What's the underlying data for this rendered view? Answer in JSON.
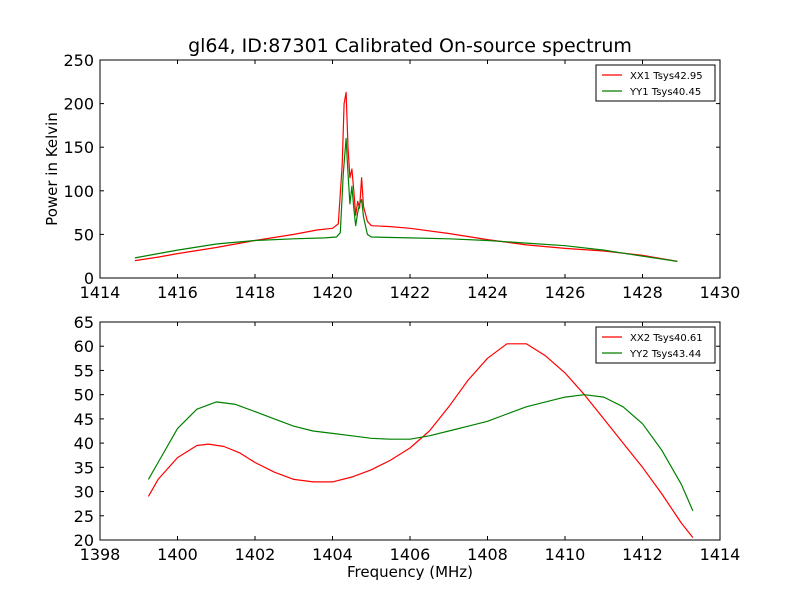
{
  "figure": {
    "title": "gl64, ID:87301 Calibrated On-source spectrum"
  },
  "chart_data": [
    {
      "type": "line",
      "title": "gl64, ID:87301 Calibrated On-source spectrum",
      "xlabel": "",
      "ylabel": "Power in Kelvin",
      "xlim": [
        1414,
        1430
      ],
      "ylim": [
        0,
        250
      ],
      "xticks": [
        1414,
        1416,
        1418,
        1420,
        1422,
        1424,
        1426,
        1428,
        1430
      ],
      "yticks": [
        0,
        50,
        100,
        150,
        200,
        250
      ],
      "legend_position": "top-right",
      "grid": false,
      "series": [
        {
          "name": "XX1 Tsys42.95",
          "color": "#ff0000",
          "points": [
            [
              1414.9,
              20
            ],
            [
              1415.5,
              24
            ],
            [
              1416,
              28
            ],
            [
              1417,
              35
            ],
            [
              1418,
              43
            ],
            [
              1419,
              50
            ],
            [
              1419.6,
              55
            ],
            [
              1420.0,
              57
            ],
            [
              1420.15,
              62
            ],
            [
              1420.25,
              130
            ],
            [
              1420.3,
              200
            ],
            [
              1420.35,
              213
            ],
            [
              1420.4,
              150
            ],
            [
              1420.45,
              115
            ],
            [
              1420.5,
              125
            ],
            [
              1420.55,
              100
            ],
            [
              1420.6,
              72
            ],
            [
              1420.65,
              88
            ],
            [
              1420.7,
              80
            ],
            [
              1420.75,
              115
            ],
            [
              1420.8,
              82
            ],
            [
              1420.9,
              65
            ],
            [
              1421.0,
              60
            ],
            [
              1421.5,
              59
            ],
            [
              1422,
              57
            ],
            [
              1423,
              51
            ],
            [
              1424,
              44
            ],
            [
              1425,
              38
            ],
            [
              1426,
              34
            ],
            [
              1427,
              31
            ],
            [
              1428,
              26
            ],
            [
              1428.9,
              19
            ]
          ]
        },
        {
          "name": "YY1 Tsys40.45",
          "color": "#008000",
          "points": [
            [
              1414.9,
              23
            ],
            [
              1415.5,
              28
            ],
            [
              1416,
              32
            ],
            [
              1417,
              39
            ],
            [
              1418,
              43
            ],
            [
              1419,
              45
            ],
            [
              1419.8,
              46
            ],
            [
              1420.1,
              47
            ],
            [
              1420.2,
              52
            ],
            [
              1420.28,
              120
            ],
            [
              1420.35,
              160
            ],
            [
              1420.4,
              120
            ],
            [
              1420.45,
              85
            ],
            [
              1420.5,
              105
            ],
            [
              1420.55,
              80
            ],
            [
              1420.6,
              60
            ],
            [
              1420.65,
              75
            ],
            [
              1420.7,
              85
            ],
            [
              1420.75,
              90
            ],
            [
              1420.8,
              70
            ],
            [
              1420.9,
              50
            ],
            [
              1421.0,
              47
            ],
            [
              1422,
              46
            ],
            [
              1423,
              45
            ],
            [
              1424,
              43
            ],
            [
              1425,
              40
            ],
            [
              1426,
              37
            ],
            [
              1427,
              32
            ],
            [
              1428,
              25
            ],
            [
              1428.9,
              19
            ]
          ]
        }
      ]
    },
    {
      "type": "line",
      "title": "",
      "xlabel": "Frequency (MHz)",
      "ylabel": "",
      "xlim": [
        1398,
        1414
      ],
      "ylim": [
        20,
        65
      ],
      "xticks": [
        1398,
        1400,
        1402,
        1404,
        1406,
        1408,
        1410,
        1412,
        1414
      ],
      "yticks": [
        20,
        25,
        30,
        35,
        40,
        45,
        50,
        55,
        60,
        65
      ],
      "legend_position": "top-right",
      "grid": false,
      "series": [
        {
          "name": "XX2 Tsys40.61",
          "color": "#ff0000",
          "points": [
            [
              1399.25,
              29
            ],
            [
              1399.5,
              32.5
            ],
            [
              1400,
              37
            ],
            [
              1400.5,
              39.5
            ],
            [
              1400.8,
              39.8
            ],
            [
              1401.2,
              39.3
            ],
            [
              1401.6,
              38
            ],
            [
              1402,
              36
            ],
            [
              1402.5,
              34
            ],
            [
              1403,
              32.5
            ],
            [
              1403.5,
              32
            ],
            [
              1404,
              32
            ],
            [
              1404.5,
              33
            ],
            [
              1405,
              34.5
            ],
            [
              1405.5,
              36.5
            ],
            [
              1406,
              39
            ],
            [
              1406.5,
              42.5
            ],
            [
              1407,
              47.5
            ],
            [
              1407.5,
              53
            ],
            [
              1408,
              57.5
            ],
            [
              1408.5,
              60.5
            ],
            [
              1409,
              60.5
            ],
            [
              1409.5,
              58
            ],
            [
              1410,
              54.5
            ],
            [
              1410.5,
              50
            ],
            [
              1411,
              45
            ],
            [
              1411.5,
              40
            ],
            [
              1412,
              35
            ],
            [
              1412.5,
              29.5
            ],
            [
              1413,
              23.5
            ],
            [
              1413.3,
              20.5
            ]
          ]
        },
        {
          "name": "YY2 Tsys43.44",
          "color": "#008000",
          "points": [
            [
              1399.25,
              32.5
            ],
            [
              1399.5,
              36
            ],
            [
              1400,
              43
            ],
            [
              1400.5,
              47
            ],
            [
              1401,
              48.5
            ],
            [
              1401.5,
              48
            ],
            [
              1402,
              46.5
            ],
            [
              1402.5,
              45
            ],
            [
              1403,
              43.5
            ],
            [
              1403.5,
              42.5
            ],
            [
              1404,
              42
            ],
            [
              1404.5,
              41.5
            ],
            [
              1405,
              41
            ],
            [
              1405.5,
              40.8
            ],
            [
              1406,
              40.8
            ],
            [
              1406.5,
              41.5
            ],
            [
              1407,
              42.5
            ],
            [
              1407.5,
              43.5
            ],
            [
              1408,
              44.5
            ],
            [
              1408.5,
              46
            ],
            [
              1409,
              47.5
            ],
            [
              1409.5,
              48.5
            ],
            [
              1410,
              49.5
            ],
            [
              1410.5,
              50
            ],
            [
              1411,
              49.5
            ],
            [
              1411.5,
              47.5
            ],
            [
              1412,
              44
            ],
            [
              1412.5,
              38.5
            ],
            [
              1413,
              31.5
            ],
            [
              1413.3,
              26
            ]
          ]
        }
      ]
    }
  ]
}
